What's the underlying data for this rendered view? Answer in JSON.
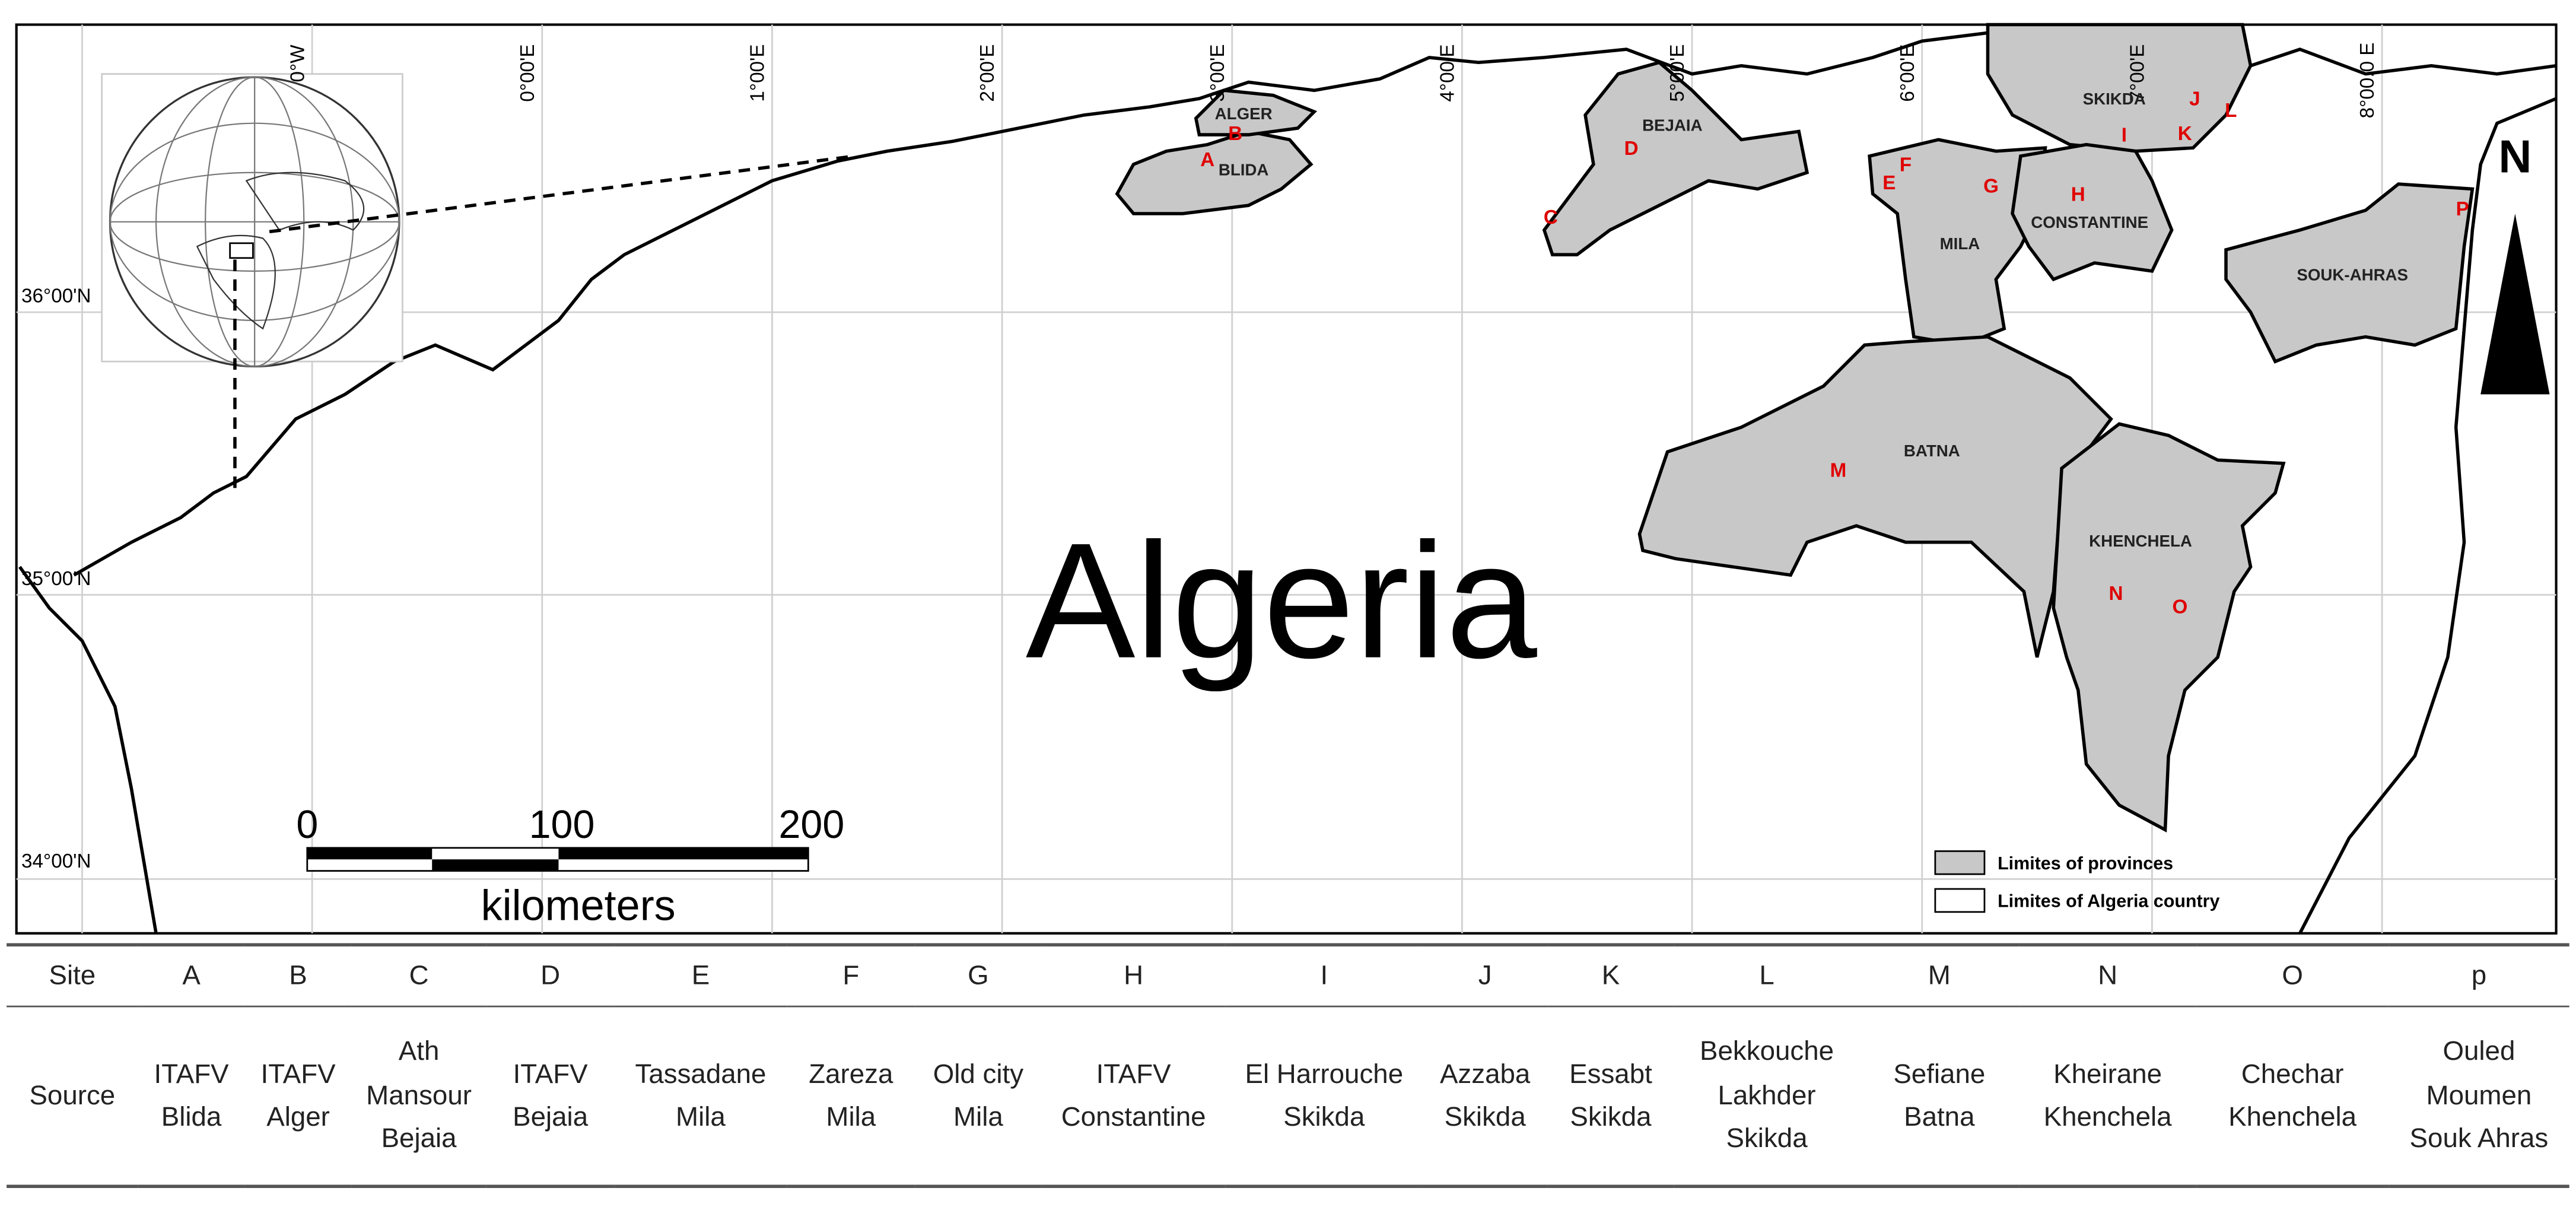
{
  "map": {
    "title": "Algeria",
    "lon_labels": [
      "0°W",
      "0°00'E",
      "1°00'E",
      "2°00'E",
      "3°00'E",
      "4°00'E",
      "5°00'E",
      "6°00'E",
      "7°00'E",
      "8°00.0 E"
    ],
    "lat_labels": [
      "36°00'N",
      "35°00'N",
      "34°00'N"
    ],
    "provinces": [
      "ALGER",
      "BLIDA",
      "BEJAIA",
      "SKIKDA",
      "MILA",
      "CONSTANTINE",
      "SOUK-AHRAS",
      "BATNA",
      "KHENCHELA"
    ],
    "sites": [
      "A",
      "B",
      "C",
      "D",
      "E",
      "F",
      "G",
      "H",
      "I",
      "J",
      "K",
      "L",
      "M",
      "N",
      "O",
      "P"
    ],
    "scale": {
      "labels": [
        "0",
        "100",
        "200"
      ],
      "unit": "kilometers"
    },
    "north": "N",
    "legend": [
      "Limites of provinces",
      "Limites of Algeria country"
    ]
  },
  "table": {
    "rows": [
      [
        "Site",
        "A",
        "B",
        "C",
        "D",
        "E",
        "F",
        "G",
        "H",
        "I",
        "J",
        "K",
        "L",
        "M",
        "N",
        "O",
        "p"
      ],
      [
        "Source",
        "ITAFV Blida",
        "ITAFV Alger",
        "Ath Mansour Bejaia",
        "ITAFV Bejaia",
        "Tassadane Mila",
        "Zareza Mila",
        "Old city Mila",
        "ITAFV Constantine",
        "El Harrouche Skikda",
        "Azzaba Skikda",
        "Essabt Skikda",
        "Bekkouche Lakhder Skikda",
        "Sefiane Batna",
        "Kheirane Khenchela",
        "Chechar Khenchela",
        "Ouled Moumen Souk Ahras"
      ]
    ]
  }
}
